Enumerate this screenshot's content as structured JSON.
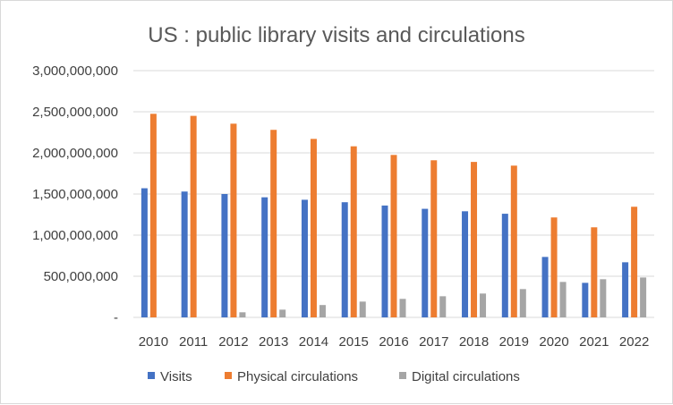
{
  "chart_data": {
    "type": "bar",
    "title": "US : public library visits and circulations",
    "categories": [
      "2010",
      "2011",
      "2012",
      "2013",
      "2014",
      "2015",
      "2016",
      "2017",
      "2018",
      "2019",
      "2020",
      "2021",
      "2022"
    ],
    "series": [
      {
        "name": "Visits",
        "color": "#4472C4",
        "values": [
          1570000000,
          1530000000,
          1500000000,
          1460000000,
          1430000000,
          1400000000,
          1360000000,
          1320000000,
          1290000000,
          1260000000,
          735000000,
          420000000,
          670000000
        ]
      },
      {
        "name": "Physical circulations",
        "color": "#ED7D31",
        "values": [
          2475000000,
          2450000000,
          2355000000,
          2280000000,
          2170000000,
          2080000000,
          1975000000,
          1910000000,
          1890000000,
          1845000000,
          1215000000,
          1095000000,
          1345000000
        ]
      },
      {
        "name": "Digital circulations",
        "color": "#A5A5A5",
        "values": [
          0,
          0,
          62000000,
          94000000,
          150000000,
          192000000,
          225000000,
          257000000,
          290000000,
          344000000,
          431000000,
          464000000,
          485000000
        ]
      }
    ],
    "ylim": [
      0,
      3000000000
    ],
    "yticks": [
      "-",
      "500,000,000",
      "1,000,000,000",
      "1,500,000,000",
      "2,000,000,000",
      "2,500,000,000",
      "3,000,000,000"
    ],
    "ytick_values": [
      0,
      500000000,
      1000000000,
      1500000000,
      2000000000,
      2500000000,
      3000000000
    ],
    "grid": true,
    "legend": "bottom",
    "xlabel": "",
    "ylabel": ""
  }
}
